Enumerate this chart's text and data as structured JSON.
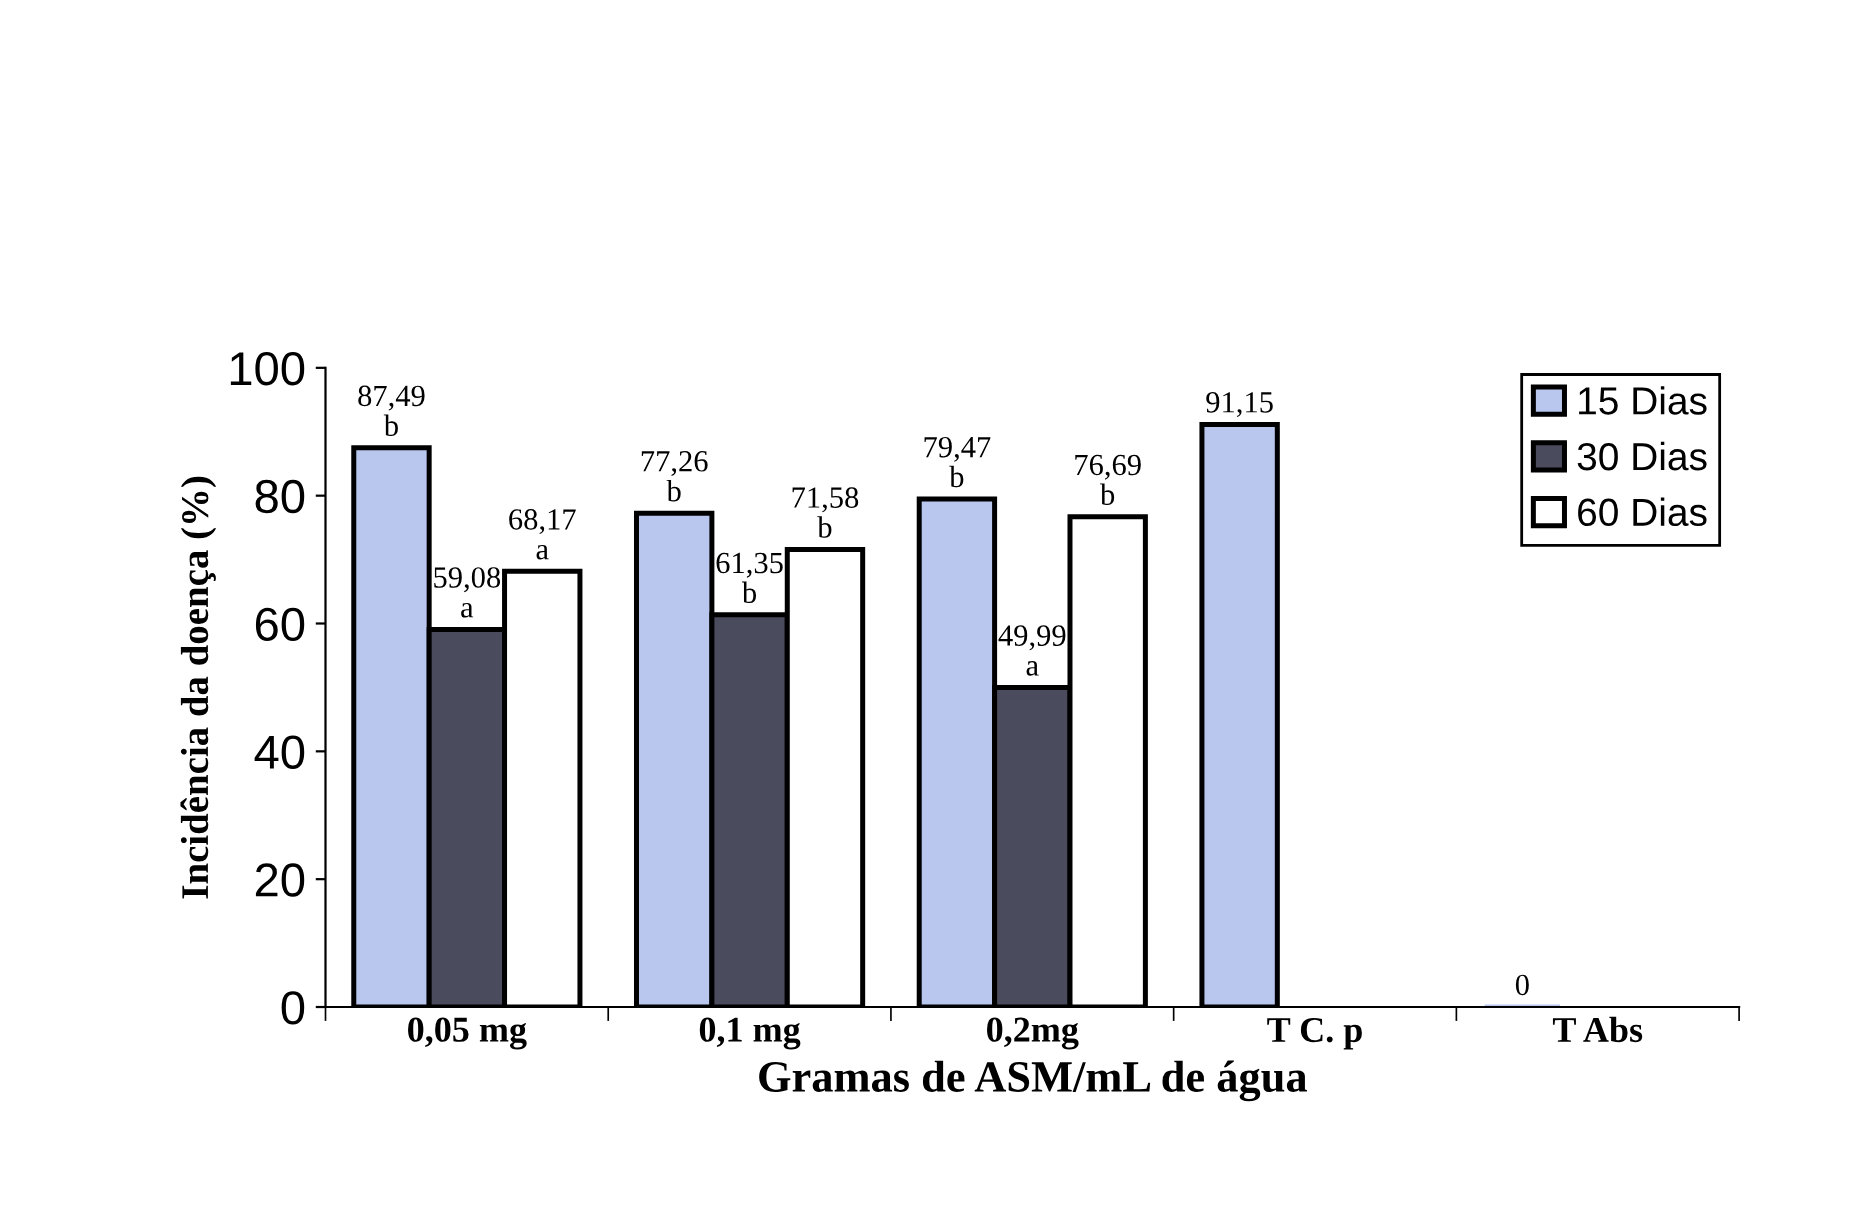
{
  "chart_data": {
    "type": "bar",
    "xlabel": "Gramas de ASM/mL de água",
    "ylabel": "Incidência da doença (%)",
    "categories": [
      "0,05 mg",
      "0,1 mg",
      "0,2mg",
      "T C. p",
      "T Abs"
    ],
    "series": [
      {
        "name": "15 Dias",
        "color": "#b9c7ef",
        "values": [
          87.49,
          77.26,
          79.47,
          91.15,
          0
        ],
        "value_labels": [
          "87,49\nb",
          "77,26\nb",
          "79,47\nb",
          "91,15",
          "0"
        ]
      },
      {
        "name": "30 Dias",
        "color": "#4b4b5e",
        "values": [
          59.08,
          61.35,
          49.99,
          null,
          null
        ],
        "value_labels": [
          "59,08\na",
          "61,35\nb",
          "49,99\na",
          null,
          null
        ]
      },
      {
        "name": "60 Dias",
        "color": "#ffffff",
        "values": [
          68.17,
          71.58,
          76.69,
          null,
          null
        ],
        "value_labels": [
          "68,17\na",
          "71,58\nb",
          "76,69\nb",
          null,
          null
        ]
      }
    ],
    "ylim": [
      0,
      100
    ],
    "yticks": [
      0,
      20,
      40,
      60,
      80,
      100
    ],
    "grid": false,
    "legend": "top right"
  }
}
